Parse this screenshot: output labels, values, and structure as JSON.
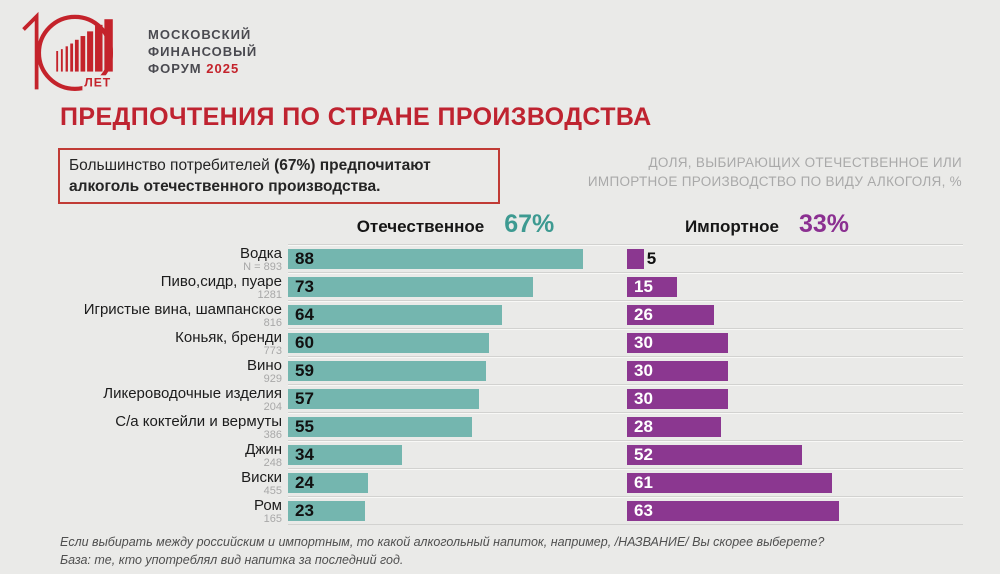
{
  "colors": {
    "background": "#eaeae8",
    "accent_red": "#c4232b",
    "title_red": "#bf2330",
    "domestic_bar": "#74b6af",
    "domestic_pct_text": "#3d9a91",
    "imported_bar": "#8b3790",
    "imported_pct_text": "#8b3091"
  },
  "logo": {
    "anniversary_label": "ЛЕТ",
    "brand_line1": "МОСКОВСКИЙ",
    "brand_line2": "ФИНАНСОВЫЙ",
    "brand_line3": "ФОРУМ",
    "brand_year": "2025"
  },
  "title": "ПРЕДПОЧТЕНИЯ ПО СТРАНЕ ПРОИЗВОДСТВА",
  "callout": {
    "line1_regular": "Большинство потребителей ",
    "line1_bold": "(67%) предпочитают",
    "line2_bold": "алкоголь отечественного производства."
  },
  "subtitle": {
    "line1": "ДОЛЯ, ВЫБИРАЮЩИХ ОТЕЧЕСТВЕННОЕ ИЛИ",
    "line2": "ИМПОРТНОЕ ПРОИЗВОДСТВО ПО ВИДУ АЛКОГОЛЯ, %"
  },
  "chart_data": {
    "type": "bar",
    "orientation": "horizontal",
    "xlim": [
      0,
      100
    ],
    "value_labels": "shown",
    "categories": [
      "Водка",
      "Пиво,сидр, пуаре",
      "Игристые вина, шампанское",
      "Коньяк, бренди",
      "Вино",
      "Ликероводочные изделия",
      "С/а коктейли и вермуты",
      "Джин",
      "Виски",
      "Ром"
    ],
    "sample_sizes": [
      "N = 893",
      "1281",
      "816",
      "773",
      "929",
      "204",
      "386",
      "248",
      "455",
      "165"
    ],
    "series": [
      {
        "name": "Отечественное",
        "total_share": "67%",
        "color": "#74b6af",
        "percent_color": "#3d9a91",
        "values": [
          88,
          73,
          64,
          60,
          59,
          57,
          55,
          34,
          24,
          23
        ]
      },
      {
        "name": "Импортное",
        "total_share": "33%",
        "color": "#8b3790",
        "percent_color": "#8b3091",
        "values": [
          5,
          15,
          26,
          30,
          30,
          30,
          28,
          52,
          61,
          63
        ]
      }
    ]
  },
  "footer": {
    "line1": "Если выбирать между российским и импортным, то какой алкогольный напиток, например, /НАЗВАНИЕ/ Вы скорее выберете?",
    "line2": "База: те, кто употреблял вид напитка за последний год."
  }
}
